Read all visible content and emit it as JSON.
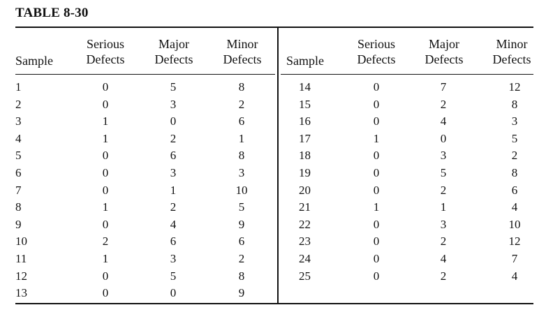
{
  "title": "TABLE 8-30",
  "headers": {
    "sample": "Sample",
    "serious": [
      "Serious",
      "Defects"
    ],
    "major": [
      "Major",
      "Defects"
    ],
    "minor": [
      "Minor",
      "Defects"
    ]
  },
  "left_rows": [
    {
      "sample": "1",
      "serious": "0",
      "major": "5",
      "minor": "8"
    },
    {
      "sample": "2",
      "serious": "0",
      "major": "3",
      "minor": "2"
    },
    {
      "sample": "3",
      "serious": "1",
      "major": "0",
      "minor": "6"
    },
    {
      "sample": "4",
      "serious": "1",
      "major": "2",
      "minor": "1"
    },
    {
      "sample": "5",
      "serious": "0",
      "major": "6",
      "minor": "8"
    },
    {
      "sample": "6",
      "serious": "0",
      "major": "3",
      "minor": "3"
    },
    {
      "sample": "7",
      "serious": "0",
      "major": "1",
      "minor": "10"
    },
    {
      "sample": "8",
      "serious": "1",
      "major": "2",
      "minor": "5"
    },
    {
      "sample": "9",
      "serious": "0",
      "major": "4",
      "minor": "9"
    },
    {
      "sample": "10",
      "serious": "2",
      "major": "6",
      "minor": "6"
    },
    {
      "sample": "11",
      "serious": "1",
      "major": "3",
      "minor": "2"
    },
    {
      "sample": "12",
      "serious": "0",
      "major": "5",
      "minor": "8"
    },
    {
      "sample": "13",
      "serious": "0",
      "major": "0",
      "minor": "9"
    }
  ],
  "right_rows": [
    {
      "sample": "14",
      "serious": "0",
      "major": "7",
      "minor": "12"
    },
    {
      "sample": "15",
      "serious": "0",
      "major": "2",
      "minor": "8"
    },
    {
      "sample": "16",
      "serious": "0",
      "major": "4",
      "minor": "3"
    },
    {
      "sample": "17",
      "serious": "1",
      "major": "0",
      "minor": "5"
    },
    {
      "sample": "18",
      "serious": "0",
      "major": "3",
      "minor": "2"
    },
    {
      "sample": "19",
      "serious": "0",
      "major": "5",
      "minor": "8"
    },
    {
      "sample": "20",
      "serious": "0",
      "major": "2",
      "minor": "6"
    },
    {
      "sample": "21",
      "serious": "1",
      "major": "1",
      "minor": "4"
    },
    {
      "sample": "22",
      "serious": "0",
      "major": "3",
      "minor": "10"
    },
    {
      "sample": "23",
      "serious": "0",
      "major": "2",
      "minor": "12"
    },
    {
      "sample": "24",
      "serious": "0",
      "major": "4",
      "minor": "7"
    },
    {
      "sample": "25",
      "serious": "0",
      "major": "2",
      "minor": "4"
    }
  ]
}
